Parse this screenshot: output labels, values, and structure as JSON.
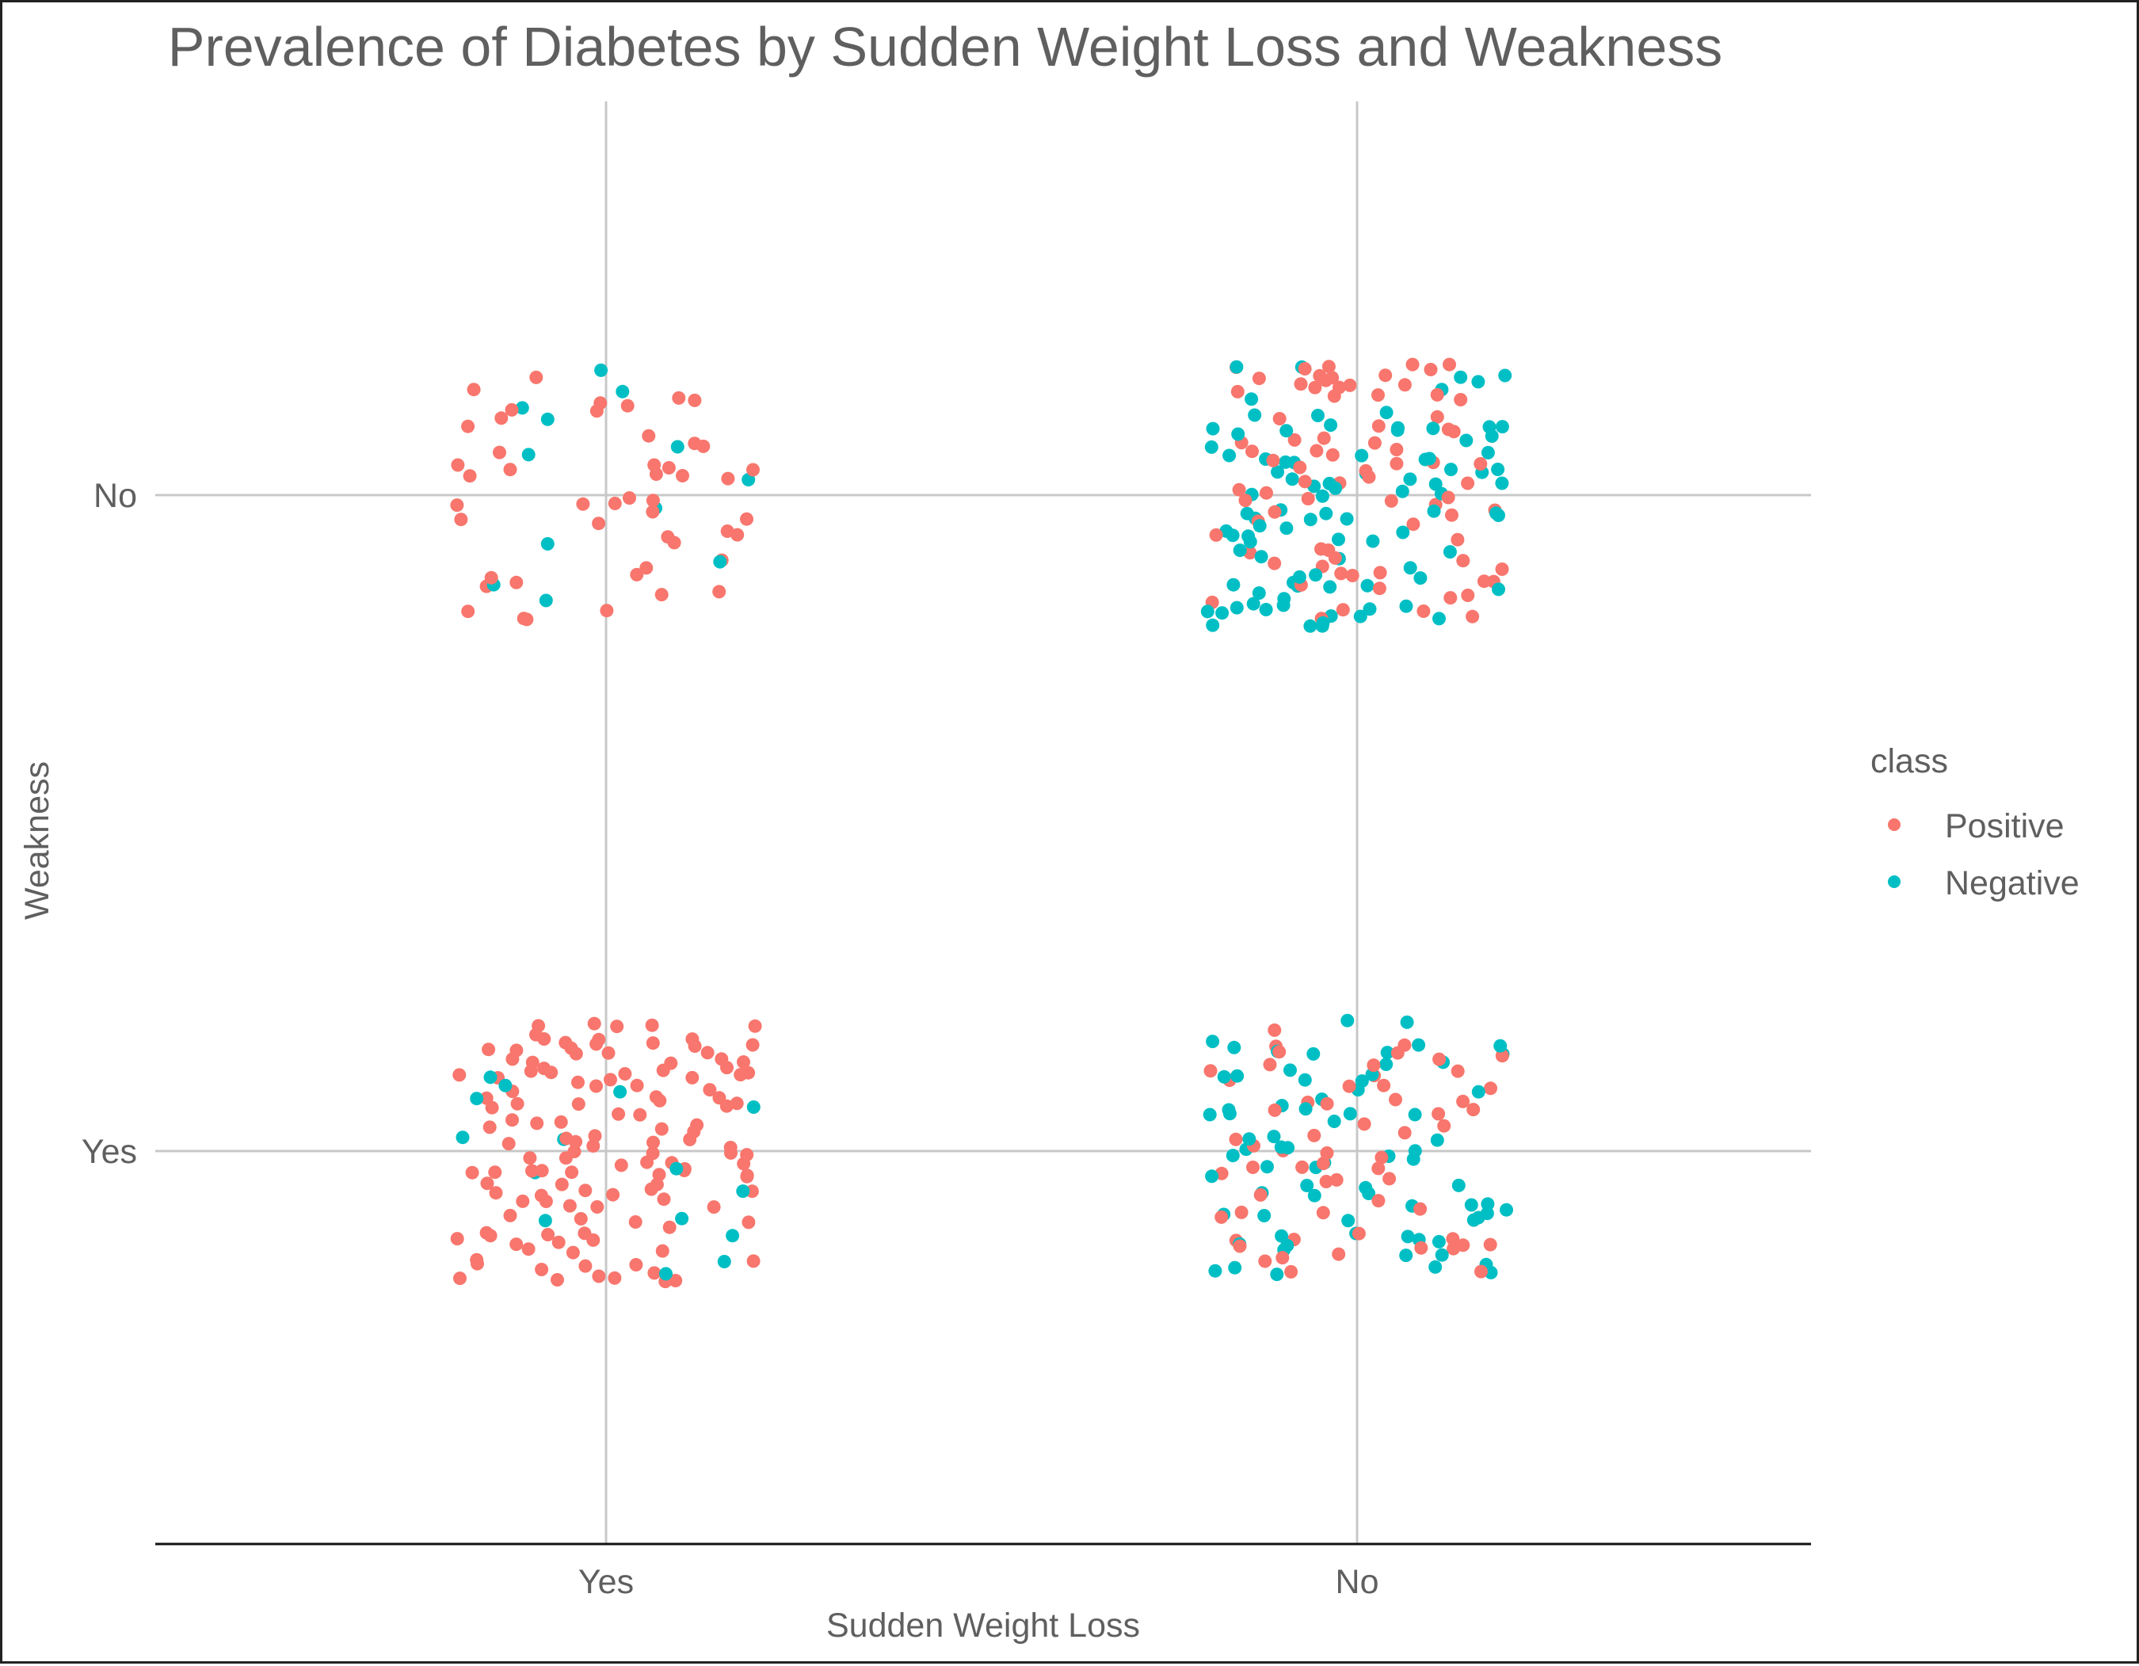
{
  "chart_data": {
    "type": "scatter",
    "title": "Prevalence of Diabetes by Sudden Weight Loss and Weakness",
    "xlabel": "Sudden Weight Loss",
    "ylabel": "Weakness",
    "x_categories": [
      "Yes",
      "No"
    ],
    "y_categories": [
      "Yes",
      "No"
    ],
    "jitter": 0.2,
    "grid": "major-only",
    "legend": {
      "title": "class",
      "position": "right",
      "entries": [
        {
          "name": "Positive",
          "color": "#F8766D"
        },
        {
          "name": "Negative",
          "color": "#00BFC4"
        }
      ]
    },
    "groups": [
      {
        "x": "Yes",
        "y": "No",
        "positive": 48,
        "negative": 12
      },
      {
        "x": "No",
        "y": "No",
        "positive": 80,
        "negative": 95
      },
      {
        "x": "Yes",
        "y": "Yes",
        "positive": 132,
        "negative": 15
      },
      {
        "x": "No",
        "y": "Yes",
        "positive": 60,
        "negative": 75
      }
    ]
  }
}
